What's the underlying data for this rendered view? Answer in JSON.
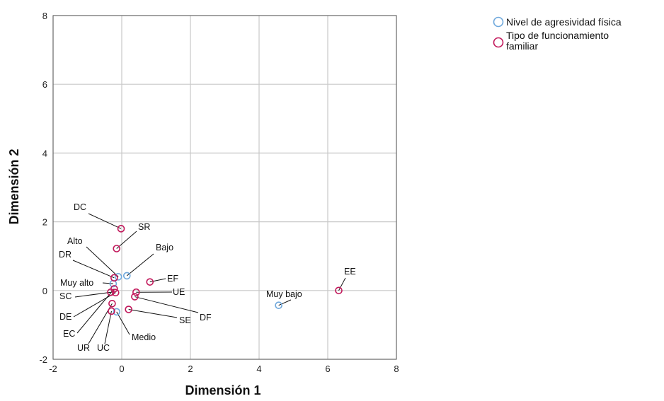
{
  "chart_data": {
    "type": "scatter",
    "xlabel": "Dimensión 1",
    "ylabel": "Dimensión 2",
    "xlim": [
      -2,
      8
    ],
    "ylim": [
      -2,
      8
    ],
    "xticks": [
      "-2",
      "0",
      "2",
      "4",
      "6",
      "8"
    ],
    "yticks": [
      "-2",
      "0",
      "2",
      "4",
      "6",
      "8"
    ],
    "grid": true,
    "legend_position": "top-right",
    "series": [
      {
        "name": "Nivel de agresividad física",
        "color": "#6fa8dc",
        "points": [
          {
            "label": "Bajo",
            "x": 0.15,
            "y": 0.43
          },
          {
            "label": "Alto",
            "x": -0.1,
            "y": 0.4
          },
          {
            "label": "Muy alto",
            "x": -0.25,
            "y": 0.2
          },
          {
            "label": "Medio",
            "x": -0.15,
            "y": -0.62
          },
          {
            "label": "Muy bajo",
            "x": 4.57,
            "y": -0.43
          }
        ]
      },
      {
        "name": "Tipo de funcionamiento familiar",
        "color": "#c2185b",
        "points": [
          {
            "label": "DC",
            "x": -0.02,
            "y": 1.8
          },
          {
            "label": "SR",
            "x": -0.15,
            "y": 1.22
          },
          {
            "label": "DR",
            "x": -0.22,
            "y": 0.37
          },
          {
            "label": "EF",
            "x": 0.82,
            "y": 0.25
          },
          {
            "label": "UE",
            "x": 0.42,
            "y": -0.05
          },
          {
            "label": "DF",
            "x": 0.38,
            "y": -0.18
          },
          {
            "label": "SE",
            "x": 0.2,
            "y": -0.55
          },
          {
            "label": "SC",
            "x": -0.32,
            "y": -0.05
          },
          {
            "label": "DE",
            "x": -0.18,
            "y": -0.06
          },
          {
            "label": "EC",
            "x": -0.22,
            "y": 0.05
          },
          {
            "label": "UR",
            "x": -0.28,
            "y": -0.38
          },
          {
            "label": "UC",
            "x": -0.3,
            "y": -0.6
          },
          {
            "label": "EE",
            "x": 6.32,
            "y": 0.0
          }
        ]
      }
    ]
  }
}
